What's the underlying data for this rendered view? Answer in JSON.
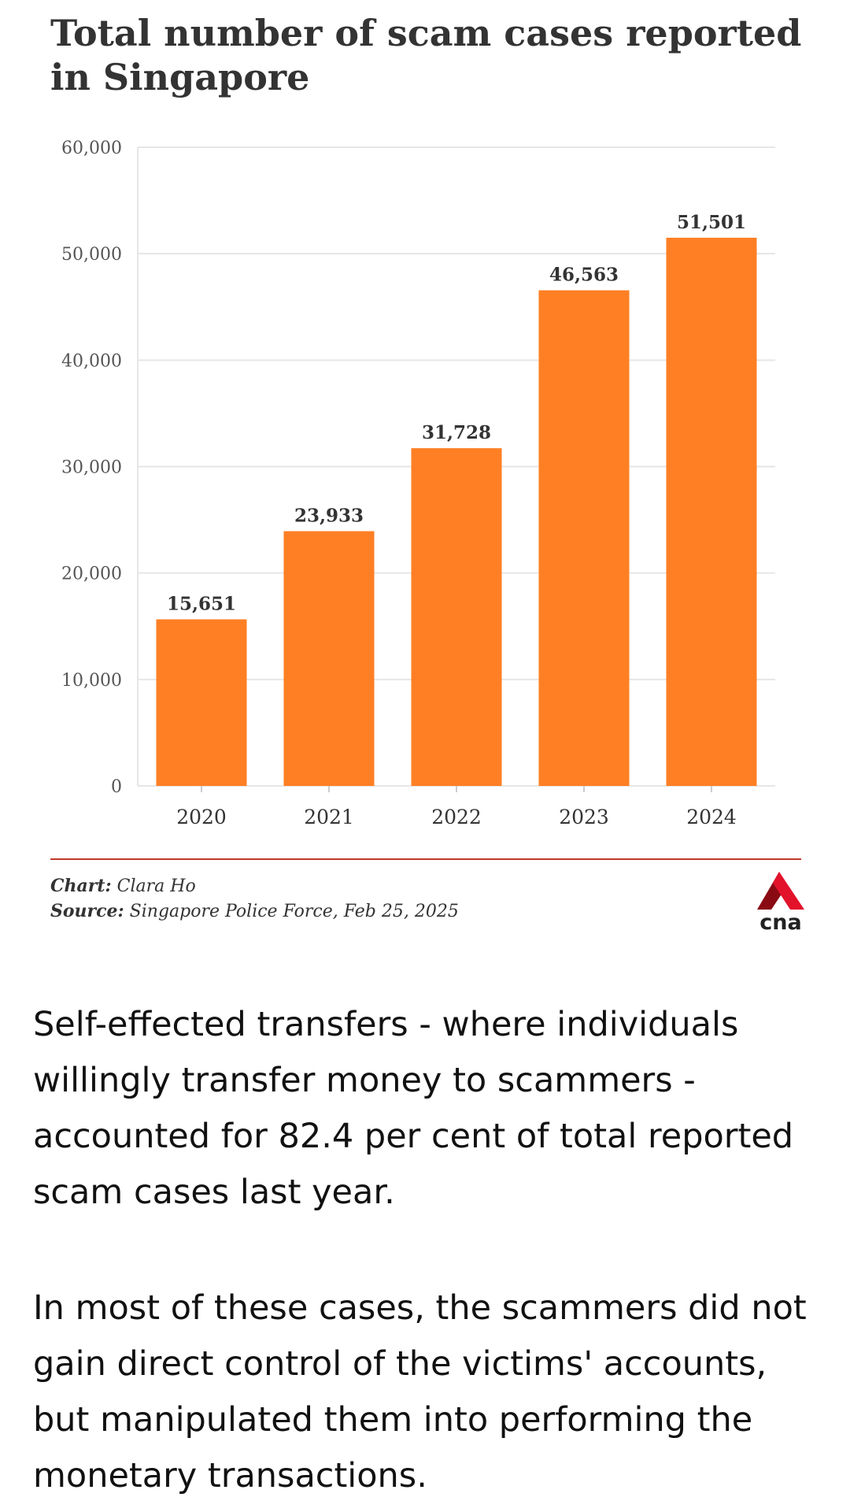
{
  "chart_data": {
    "type": "bar",
    "title": "Total number of scam cases reported in Singapore",
    "categories": [
      "2020",
      "2021",
      "2022",
      "2023",
      "2024"
    ],
    "values": [
      15651,
      23933,
      31728,
      46563,
      51501
    ],
    "data_labels": [
      "15,651",
      "23,933",
      "31,728",
      "46,563",
      "51,501"
    ],
    "ylim": [
      0,
      60000
    ],
    "yticks": [
      0,
      10000,
      20000,
      30000,
      40000,
      50000,
      60000
    ],
    "ytick_labels": [
      "0",
      "10,000",
      "20,000",
      "30,000",
      "40,000",
      "50,000",
      "60,000"
    ],
    "xlabel": "",
    "ylabel": "",
    "grid": true,
    "bar_color": "#ff7f24"
  },
  "credits": {
    "chart_label": "Chart:",
    "chart_value": "Clara Ho",
    "source_label": "Source:",
    "source_value": "Singapore Police Force, Feb 25, 2025"
  },
  "brand": {
    "logo_text": "cna",
    "logo_red": "#e3122b",
    "logo_dark": "#8a0a14"
  },
  "article": {
    "paragraphs": [
      "Self-effected transfers - where individuals willingly transfer money to scammers - accounted for 82.4 per cent of total reported scam cases last year.",
      "In most of these cases, the scammers did not gain direct control of the victims' accounts, but manipulated them into performing the monetary transactions."
    ]
  }
}
